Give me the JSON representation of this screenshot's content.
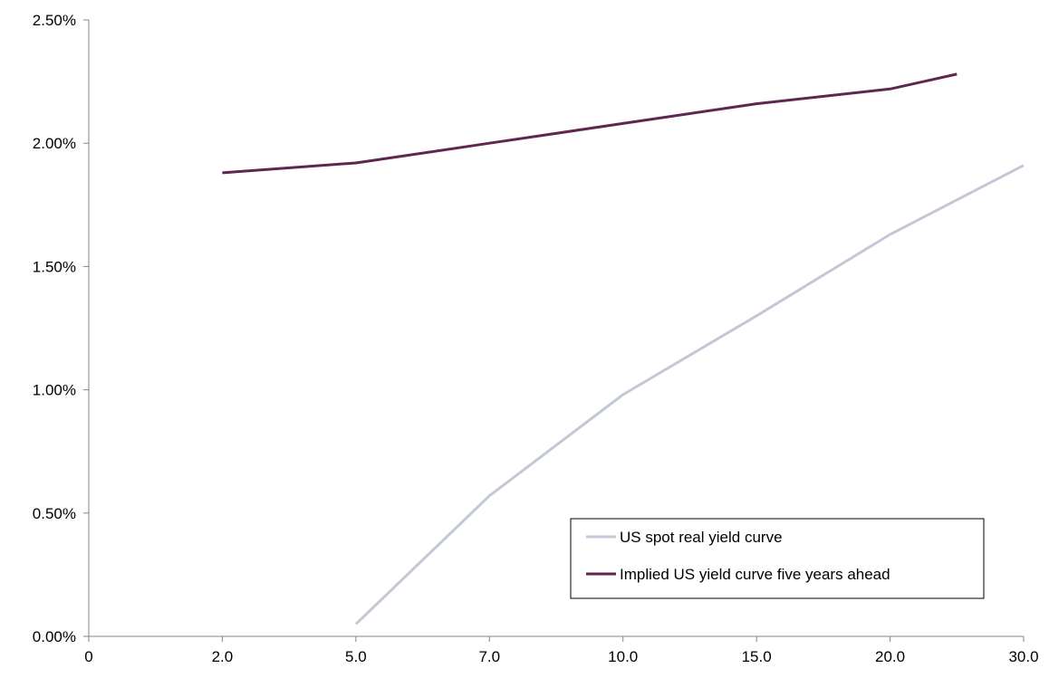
{
  "chart_data": {
    "type": "line",
    "title": "",
    "xlabel": "",
    "ylabel": "",
    "categories": [
      "0",
      "2.0",
      "5.0",
      "7.0",
      "10.0",
      "15.0",
      "20.0",
      "30.0"
    ],
    "y_ticks": [
      "0.00%",
      "0.50%",
      "1.00%",
      "1.50%",
      "2.00%",
      "2.50%"
    ],
    "ylim": [
      0,
      2.5
    ],
    "y_unit": "%",
    "grid": false,
    "legend_position": "bottom-right",
    "series": [
      {
        "name": "US spot real yield curve",
        "color": "#c3c8d6",
        "points": [
          {
            "x": "5.0",
            "y": 0.05
          },
          {
            "x": "7.0",
            "y": 0.57
          },
          {
            "x": "10.0",
            "y": 0.98
          },
          {
            "x": "15.0",
            "y": 1.3
          },
          {
            "x": "20.0",
            "y": 1.63
          },
          {
            "x": "30.0",
            "y": 1.91
          }
        ]
      },
      {
        "name": "Implied US yield curve five years ahead",
        "color": "#5e2750",
        "points": [
          {
            "x": "2.0",
            "y": 1.88
          },
          {
            "x": "5.0",
            "y": 1.92
          },
          {
            "x": "7.0",
            "y": 2.0
          },
          {
            "x": "10.0",
            "y": 2.08
          },
          {
            "x": "15.0",
            "y": 2.16
          },
          {
            "x": "20.0",
            "y": 2.22
          },
          {
            "x": "25.0",
            "y": 2.28
          }
        ]
      }
    ]
  }
}
